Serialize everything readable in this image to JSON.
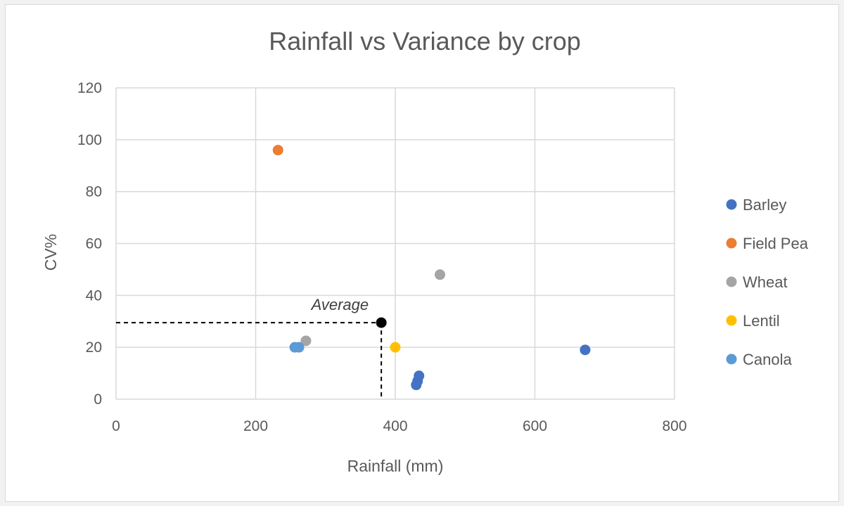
{
  "chart_data": {
    "type": "scatter",
    "title": "Rainfall vs Variance by crop",
    "xlabel": "Rainfall (mm)",
    "ylabel": "CV%",
    "xlim": [
      0,
      800
    ],
    "ylim": [
      0,
      120
    ],
    "xticks": [
      0,
      200,
      400,
      600,
      800
    ],
    "yticks": [
      0,
      20,
      40,
      60,
      80,
      100,
      120
    ],
    "x_tick_labels": [
      "0",
      "200",
      "400",
      "600",
      "800"
    ],
    "y_tick_labels": [
      "0",
      "20",
      "40",
      "60",
      "80",
      "100",
      "120"
    ],
    "grid": true,
    "legend_position": "right",
    "series": [
      {
        "name": "Barley",
        "color": "#4472c4",
        "points": [
          [
            672,
            19
          ],
          [
            434,
            9
          ],
          [
            432,
            7
          ],
          [
            430,
            5.5
          ]
        ]
      },
      {
        "name": "Field Pea",
        "color": "#ed7d31",
        "points": [
          [
            232,
            96
          ]
        ]
      },
      {
        "name": "Wheat",
        "color": "#a5a5a5",
        "points": [
          [
            464,
            48
          ],
          [
            272,
            22.5
          ]
        ]
      },
      {
        "name": "Lentil",
        "color": "#ffc000",
        "points": [
          [
            400,
            20
          ]
        ]
      },
      {
        "name": "Canola",
        "color": "#5b9bd5",
        "points": [
          [
            256,
            20
          ],
          [
            262,
            20
          ]
        ]
      }
    ],
    "annotation": {
      "label": "Average",
      "x": 380,
      "y": 29.5,
      "color": "#000000"
    }
  }
}
